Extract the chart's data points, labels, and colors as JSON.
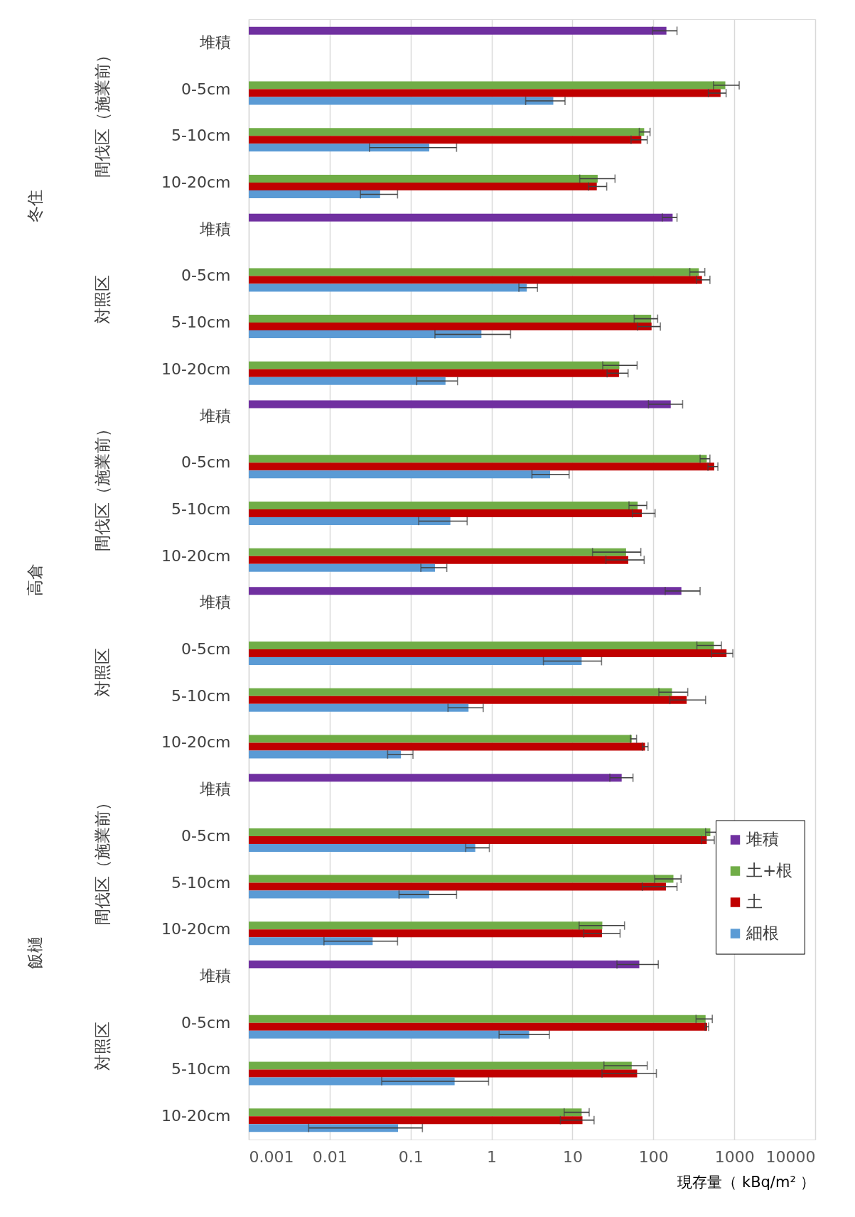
{
  "chart_data": {
    "type": "bar",
    "orientation": "horizontal",
    "log": "x",
    "categories": [
      "堆積",
      "0-5cm",
      "5-10cm",
      "10-20cm",
      "堆積",
      "0-5cm",
      "5-10cm",
      "10-20cm",
      "堆積",
      "0-5cm",
      "5-10cm",
      "10-20cm",
      "堆積",
      "0-5cm",
      "5-10cm",
      "10-20cm",
      "堆積",
      "0-5cm",
      "5-10cm",
      "10-20cm",
      "堆積",
      "0-5cm",
      "5-10cm",
      "10-20cm"
    ],
    "series": [
      {
        "name": "堆積",
        "color": "#7030a0",
        "values": [
          145,
          null,
          null,
          null,
          173,
          null,
          null,
          null,
          164,
          null,
          null,
          null,
          222,
          null,
          null,
          null,
          40.6,
          null,
          null,
          null,
          67,
          null,
          null,
          null
        ],
        "errors": [
          [
            98,
            196
          ],
          null,
          null,
          null,
          [
            129,
            196
          ],
          null,
          null,
          null,
          [
            87,
            230
          ],
          null,
          null,
          null,
          [
            140,
            378
          ],
          null,
          null,
          null,
          [
            29,
            56
          ],
          null,
          null,
          null,
          [
            35.5,
            115
          ],
          null,
          null,
          null
        ]
      },
      {
        "name": "土+根",
        "color": "#70ad47",
        "values": [
          null,
          775,
          77,
          20.5,
          null,
          365,
          94,
          38,
          null,
          457,
          64,
          46,
          null,
          560,
          170,
          54,
          null,
          506,
          177,
          23.4,
          null,
          442,
          54,
          13.0
        ],
        "errors": [
          null,
          [
            553,
            1150
          ],
          [
            67,
            91
          ],
          [
            12.3,
            33.6
          ],
          null,
          [
            282,
            432
          ],
          [
            58,
            113
          ],
          [
            23.7,
            63
          ],
          null,
          [
            378,
            500
          ],
          [
            50,
            83
          ],
          [
            17.7,
            70
          ],
          null,
          [
            345,
            693
          ],
          [
            117,
            266
          ],
          [
            52,
            62
          ],
          null,
          [
            442,
            627
          ],
          [
            104,
            220
          ],
          [
            12.1,
            44
          ],
          null,
          [
            337,
            535
          ],
          [
            24.5,
            84
          ],
          [
            7.9,
            16.1
          ]
        ]
      },
      {
        "name": "土",
        "color": "#c00000",
        "values": [
          null,
          677,
          71,
          20,
          null,
          399,
          95,
          37.6,
          null,
          566,
          72,
          49,
          null,
          802,
          258,
          79,
          null,
          457,
          143,
          23.2,
          null,
          462,
          63,
          13.3
        ],
        "errors": [
          null,
          [
            478,
            793
          ],
          [
            53,
            84
          ],
          [
            15.8,
            26.5
          ],
          null,
          [
            341,
            500
          ],
          [
            64,
            122
          ],
          [
            26.8,
            48.7
          ],
          null,
          [
            473,
            627
          ],
          [
            55,
            105
          ],
          [
            25.9,
            77
          ],
          null,
          [
            523,
            960
          ],
          [
            160,
            442
          ],
          [
            73,
            86
          ],
          null,
          [
            394,
            566
          ],
          [
            73,
            196
          ],
          [
            13.8,
            38.8
          ],
          null,
          [
            437,
            483
          ],
          [
            23.2,
            109
          ],
          [
            7.1,
            18.5
          ]
        ]
      },
      {
        "name": "細根",
        "color": "#5b9bd5",
        "values": [
          null,
          5.8,
          0.17,
          0.042,
          null,
          2.73,
          0.75,
          0.27,
          null,
          5.3,
          0.31,
          0.2,
          null,
          13,
          0.52,
          0.076,
          null,
          0.63,
          0.17,
          0.034,
          null,
          2.92,
          0.35,
          0.07
        ],
        "errors": [
          null,
          [
            2.64,
            8.1
          ],
          [
            0.031,
            0.37
          ],
          [
            0.024,
            0.069
          ],
          null,
          [
            2.18,
            3.7
          ],
          [
            0.2,
            1.72
          ],
          [
            0.119,
            0.38
          ],
          null,
          [
            3.16,
            9.1
          ],
          [
            0.126,
            0.5
          ],
          [
            0.134,
            0.28
          ],
          null,
          [
            4.38,
            22.9
          ],
          [
            0.29,
            0.79
          ],
          [
            0.052,
            0.107
          ],
          null,
          [
            0.48,
            0.94
          ],
          [
            0.072,
            0.37
          ],
          [
            0.0085,
            0.069
          ],
          null,
          [
            1.24,
            5.19
          ],
          [
            0.044,
            0.92
          ],
          [
            0.0055,
            0.14
          ]
        ]
      }
    ],
    "xlim": [
      0.001,
      10000
    ],
    "xticks": [
      0.001,
      0.01,
      0.1,
      1,
      10,
      100,
      1000,
      10000
    ],
    "xlabel": "現存量（ kBq/m² ）",
    "annotations": [
      "冬住",
      "間伐区（施業前）",
      "対照区",
      "高倉",
      "間伐区（施業前）",
      "対照区",
      "飯樋",
      "間伐区（施業前）",
      "対照区"
    ],
    "grid": "x",
    "legend": "right"
  }
}
